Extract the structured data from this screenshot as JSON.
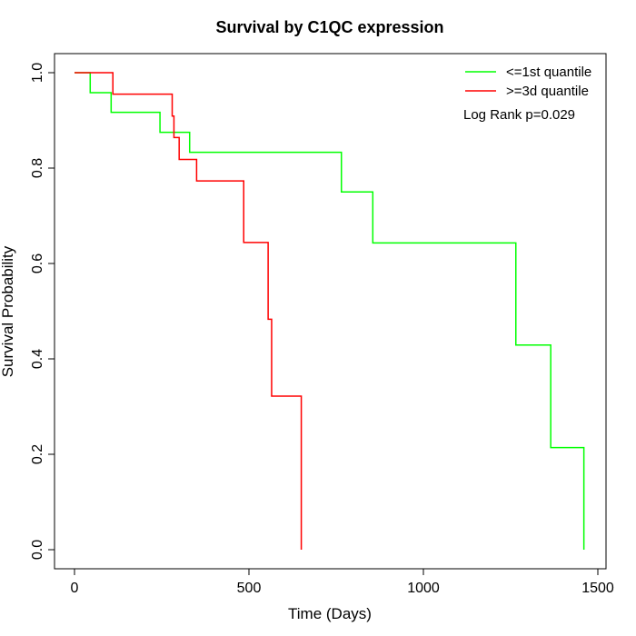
{
  "chart_data": {
    "type": "line",
    "step": true,
    "title": "Survival by C1QC expression",
    "xlabel": "Time (Days)",
    "ylabel": "Survival Probability",
    "xlim": [
      0,
      1500
    ],
    "ylim": [
      0,
      1
    ],
    "x_ticks": [
      0,
      500,
      1000,
      1500
    ],
    "x_tick_labels": [
      "0",
      "500",
      "1000",
      "1500"
    ],
    "y_ticks": [
      0,
      0.2,
      0.4,
      0.6,
      0.8,
      1
    ],
    "y_tick_labels": [
      "0.0",
      "0.2",
      "0.4",
      "0.6",
      "0.8",
      "1.0"
    ],
    "grid": false,
    "legend_position": "top-right",
    "annotation": "Log Rank p=0.029",
    "series": [
      {
        "name": "<=1st quantile",
        "color": "#00ff00",
        "x": [
          0,
          45,
          105,
          245,
          330,
          765,
          855,
          1265,
          1365,
          1460
        ],
        "y": [
          1.0,
          0.958,
          0.917,
          0.875,
          0.833,
          0.75,
          0.643,
          0.429,
          0.214,
          0.0
        ]
      },
      {
        "name": ">=3d quantile",
        "color": "#ff0000",
        "x": [
          0,
          110,
          280,
          285,
          300,
          350,
          485,
          555,
          565,
          650
        ],
        "y": [
          1.0,
          0.955,
          0.909,
          0.864,
          0.818,
          0.773,
          0.644,
          0.483,
          0.322,
          0.0
        ]
      }
    ]
  }
}
